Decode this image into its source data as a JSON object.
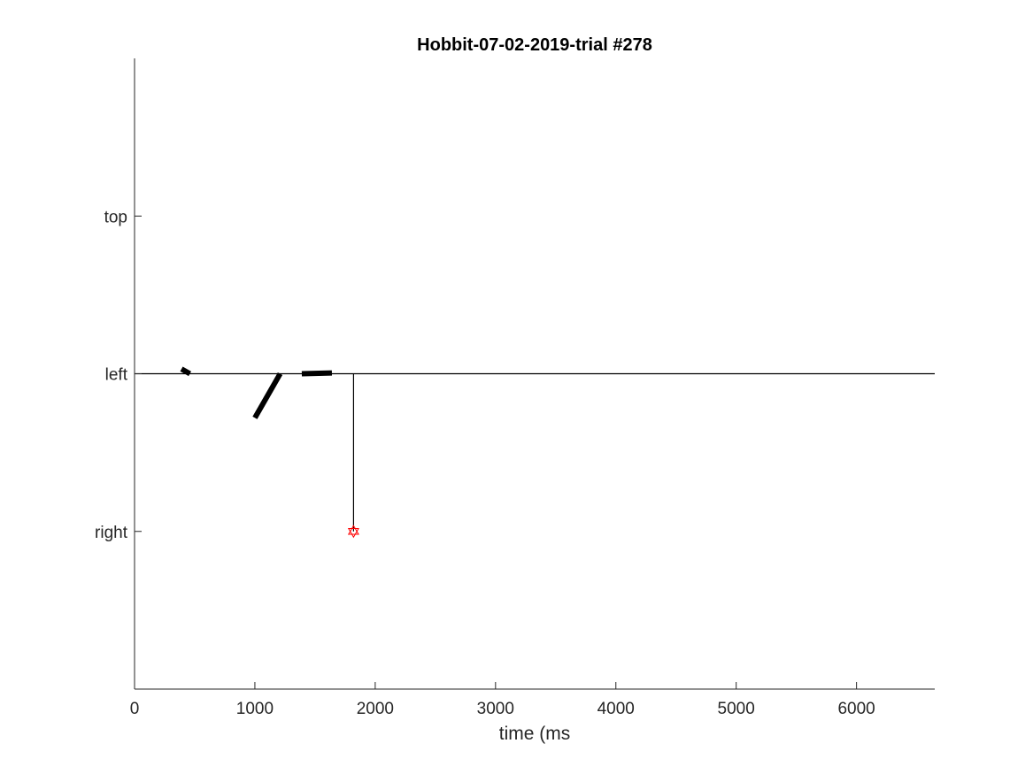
{
  "chart_data": {
    "type": "line",
    "title": "Hobbit-07-02-2019-trial #278",
    "xlabel": "time (ms",
    "ylabel": "",
    "xlim": [
      0,
      6650
    ],
    "ylim": [
      -3,
      1
    ],
    "xticks": [
      0,
      1000,
      2000,
      3000,
      4000,
      5000,
      6000
    ],
    "xtick_labels": [
      "0",
      "1000",
      "2000",
      "3000",
      "4000",
      "5000",
      "6000"
    ],
    "yticks": [
      0,
      -1,
      -2
    ],
    "ytick_labels": [
      "top",
      "left",
      "right"
    ],
    "grid": false,
    "series": [
      {
        "name": "reference-line",
        "color": "#000000",
        "width": "thin",
        "x": [
          0,
          6650
        ],
        "y": [
          -1,
          -1
        ]
      },
      {
        "name": "segment-1",
        "color": "#000000",
        "width": "thick",
        "x": [
          390,
          460
        ],
        "y": [
          -0.97,
          -1.0
        ]
      },
      {
        "name": "segment-2",
        "color": "#000000",
        "width": "thick",
        "x": [
          1000,
          1210
        ],
        "y": [
          -1.28,
          -1.0
        ]
      },
      {
        "name": "segment-3",
        "color": "#000000",
        "width": "thick",
        "x": [
          1390,
          1640
        ],
        "y": [
          -1.0,
          -0.995
        ]
      },
      {
        "name": "response-line",
        "color": "#000000",
        "width": "thin",
        "x": [
          1820,
          1820
        ],
        "y": [
          -1,
          -2
        ]
      }
    ],
    "markers": [
      {
        "name": "response-marker",
        "shape": "hexagram",
        "color": "#ff0000",
        "x": 1820,
        "y": -2
      }
    ]
  }
}
